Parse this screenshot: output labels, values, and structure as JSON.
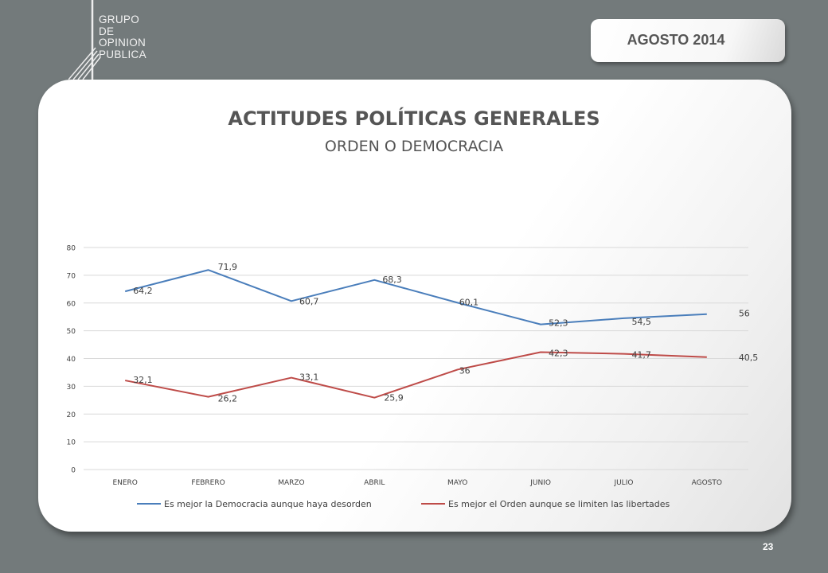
{
  "logo": {
    "lines": [
      "GRUPO",
      "DE",
      "OPINION",
      "PUBLICA"
    ]
  },
  "date_tab": {
    "label": "AGOSTO  2014"
  },
  "page_number": "23",
  "chart_data": {
    "type": "line",
    "title": "ACTITUDES POLÍTICAS GENERALES",
    "subtitle": "ORDEN O DEMOCRACIA",
    "categories": [
      "ENERO",
      "FEBRERO",
      "MARZO",
      "ABRIL",
      "MAYO",
      "JUNIO",
      "JULIO",
      "AGOSTO"
    ],
    "ylim": [
      0,
      80
    ],
    "yticks": [
      0,
      10,
      20,
      30,
      40,
      50,
      60,
      70,
      80
    ],
    "grid": true,
    "legend_position": "bottom",
    "series": [
      {
        "name": "Es mejor la Democracia aunque haya desorden",
        "color": "#4a7ebb",
        "values": [
          64.2,
          71.9,
          60.7,
          68.3,
          60.1,
          52.3,
          54.5,
          56
        ],
        "labels": [
          "64,2",
          "71,9",
          "60,7",
          "68,3",
          "60,1",
          "52,3",
          "54,5",
          "56"
        ]
      },
      {
        "name": "Es mejor el Orden aunque se limiten las libertades",
        "color": "#be4b48",
        "values": [
          32.1,
          26.2,
          33.1,
          25.9,
          36,
          42.3,
          41.7,
          40.5
        ],
        "labels": [
          "32,1",
          "26,2",
          "33,1",
          "25,9",
          "36",
          "42,3",
          "41,7",
          "40,5"
        ]
      }
    ]
  }
}
